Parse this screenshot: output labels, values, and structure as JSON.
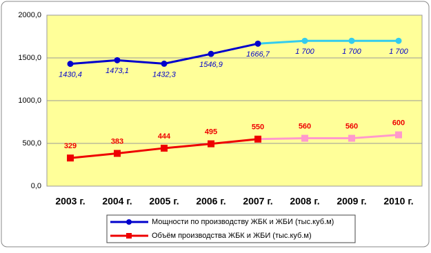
{
  "chart_data": {
    "type": "line",
    "categories": [
      "2003 г.",
      "2004 г.",
      "2005 г.",
      "2006 г.",
      "2007 г.",
      "2008 г.",
      "2009 г.",
      "2010 г."
    ],
    "ylim": [
      0,
      2000
    ],
    "yticks": [
      {
        "value": 0,
        "label": "0,0"
      },
      {
        "value": 500,
        "label": "500,0"
      },
      {
        "value": 1000,
        "label": "1000,0"
      },
      {
        "value": 1500,
        "label": "1500,0"
      },
      {
        "value": 2000,
        "label": "2000,0"
      }
    ],
    "grid": true,
    "series": [
      {
        "name": "Мощности по производству ЖБК и ЖБИ  (тыс.куб.м)",
        "color": "#0000cc",
        "colors": [
          "#0000cc",
          "#0000cc",
          "#0000cc",
          "#0000cc",
          "#0000cc",
          "#33ccee",
          "#33ccee",
          "#33ccee"
        ],
        "values": [
          1430.4,
          1473.1,
          1432.3,
          1546.9,
          1666.7,
          1700,
          1700,
          1700
        ],
        "value_labels": [
          "1430,4",
          "1473,1",
          "1432,3",
          "1546,9",
          "1666,7",
          "1 700",
          "1 700",
          "1 700"
        ]
      },
      {
        "name": "Объём производства ЖБК и ЖБИ (тыс.куб.м)",
        "color": "#ee0000",
        "colors": [
          "#ee0000",
          "#ee0000",
          "#ee0000",
          "#ee0000",
          "#ee0000",
          "#ff99cc",
          "#ff99cc",
          "#ff99cc"
        ],
        "values": [
          329,
          383,
          444,
          495,
          550,
          560,
          560,
          600
        ]
      }
    ]
  }
}
